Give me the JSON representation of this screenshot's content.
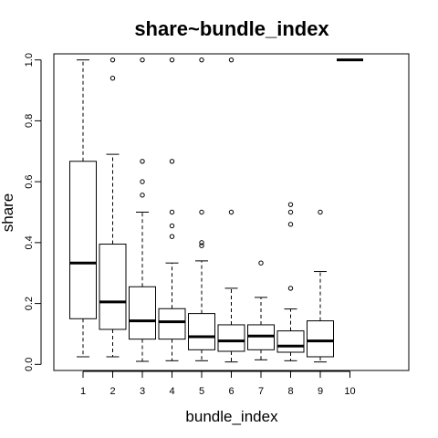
{
  "chart_data": {
    "type": "boxplot",
    "title": "share~bundle_index",
    "xlabel": "bundle_index",
    "ylabel": "share",
    "ylim": [
      -0.02,
      1.02
    ],
    "yticks": [
      0.0,
      0.2,
      0.4,
      0.6,
      0.8,
      1.0
    ],
    "ytick_labels": [
      "0.0",
      "0.2",
      "0.4",
      "0.6",
      "0.8",
      "1.0"
    ],
    "categories": [
      "1",
      "2",
      "3",
      "4",
      "5",
      "6",
      "7",
      "8",
      "9",
      "10"
    ],
    "boxes": [
      {
        "whisker_low": 0.025,
        "q1": 0.15,
        "median": 0.333,
        "q3": 0.667,
        "whisker_high": 1.0,
        "outliers": []
      },
      {
        "whisker_low": 0.025,
        "q1": 0.115,
        "median": 0.205,
        "q3": 0.395,
        "whisker_high": 0.69,
        "outliers": [
          0.94,
          1.0
        ]
      },
      {
        "whisker_low": 0.01,
        "q1": 0.083,
        "median": 0.143,
        "q3": 0.255,
        "whisker_high": 0.5,
        "outliers": [
          0.556,
          0.6,
          0.667,
          1.0
        ]
      },
      {
        "whisker_low": 0.012,
        "q1": 0.083,
        "median": 0.14,
        "q3": 0.183,
        "whisker_high": 0.333,
        "outliers": [
          0.42,
          0.455,
          0.5,
          0.667,
          1.0
        ]
      },
      {
        "whisker_low": 0.012,
        "q1": 0.048,
        "median": 0.091,
        "q3": 0.167,
        "whisker_high": 0.34,
        "outliers": [
          0.39,
          0.4,
          0.5,
          1.0
        ]
      },
      {
        "whisker_low": 0.008,
        "q1": 0.043,
        "median": 0.077,
        "q3": 0.13,
        "whisker_high": 0.25,
        "outliers": [
          0.5,
          1.0
        ]
      },
      {
        "whisker_low": 0.015,
        "q1": 0.048,
        "median": 0.093,
        "q3": 0.13,
        "whisker_high": 0.22,
        "outliers": [
          0.333
        ]
      },
      {
        "whisker_low": 0.012,
        "q1": 0.04,
        "median": 0.06,
        "q3": 0.11,
        "whisker_high": 0.182,
        "outliers": [
          0.25,
          0.46,
          0.5,
          0.525
        ]
      },
      {
        "whisker_low": 0.008,
        "q1": 0.025,
        "median": 0.077,
        "q3": 0.143,
        "whisker_high": 0.305,
        "outliers": [
          0.5
        ]
      },
      {
        "whisker_low": 1.0,
        "q1": 1.0,
        "median": 1.0,
        "q3": 1.0,
        "whisker_high": 1.0,
        "outliers": []
      }
    ],
    "grid": false,
    "legend": "none"
  }
}
